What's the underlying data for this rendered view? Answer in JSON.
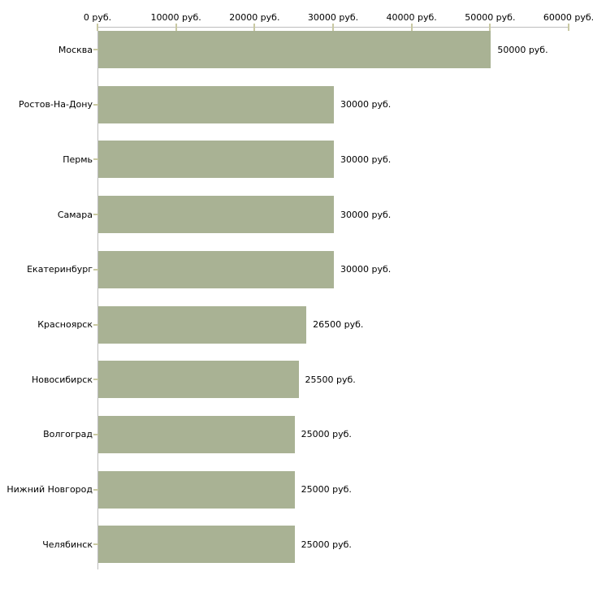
{
  "chart_data": {
    "type": "bar",
    "orientation": "horizontal",
    "unit": "руб.",
    "categories": [
      "Москва",
      "Ростов-На-Дону",
      "Пермь",
      "Самара",
      "Екатеринбург",
      "Красноярск",
      "Новосибирск",
      "Волгоград",
      "Нижний Новгород",
      "Челябинск"
    ],
    "values": [
      50000,
      30000,
      30000,
      30000,
      30000,
      26500,
      25500,
      25000,
      25000,
      25000
    ],
    "value_labels": [
      "50000 руб.",
      "30000 руб.",
      "30000 руб.",
      "30000 руб.",
      "30000 руб.",
      "26500 руб.",
      "25500 руб.",
      "25000 руб.",
      "25000 руб.",
      "25000 руб."
    ],
    "x_axis": {
      "position": "top",
      "min": 0,
      "max": 60000,
      "ticks": [
        0,
        10000,
        20000,
        30000,
        40000,
        50000,
        60000
      ],
      "tick_labels": [
        "0 руб.",
        "10000 руб.",
        "20000 руб.",
        "30000 руб.",
        "40000 руб.",
        "50000 руб.",
        "60000 руб."
      ]
    },
    "grid": false,
    "legend": false,
    "colors": {
      "bar": "#a9b294",
      "axis_line": "#bdbdbd",
      "tick_mark": "#c9c9a3",
      "text": "#000000",
      "background": "#ffffff"
    }
  }
}
